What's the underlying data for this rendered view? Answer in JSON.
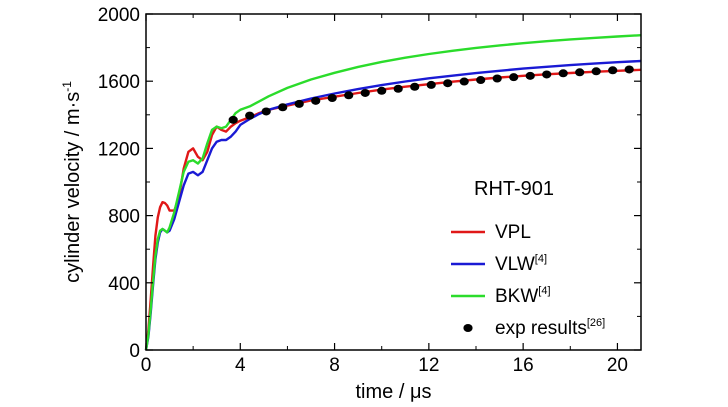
{
  "chart_data": {
    "type": "line",
    "title": "",
    "xlabel": "time / μs",
    "ylabel": "cylinder velocity / m·s",
    "ylabel_superscript": "-1",
    "xlim": [
      0,
      21
    ],
    "ylim": [
      0,
      2000
    ],
    "xticks": [
      0,
      4,
      8,
      12,
      16,
      20
    ],
    "yticks": [
      0,
      400,
      800,
      1200,
      1600,
      2000
    ],
    "legend_title": "RHT-901",
    "legend_position": "lower-right",
    "grid": false,
    "series": [
      {
        "name": "VPL",
        "ref": "",
        "color": "#e01818",
        "style": "line",
        "x": [
          0,
          0.1,
          0.2,
          0.3,
          0.4,
          0.5,
          0.6,
          0.7,
          0.8,
          0.9,
          1.0,
          1.2,
          1.4,
          1.6,
          1.8,
          2.0,
          2.2,
          2.4,
          2.6,
          2.8,
          3.0,
          3.2,
          3.4,
          3.6,
          3.8,
          4.0,
          4.4,
          4.8,
          5.2,
          6,
          7,
          8,
          9,
          10,
          11,
          12,
          13,
          14,
          15,
          16,
          17,
          18,
          19,
          20,
          21
        ],
        "y": [
          0,
          120,
          300,
          500,
          680,
          790,
          850,
          880,
          875,
          860,
          830,
          830,
          910,
          1080,
          1180,
          1200,
          1150,
          1130,
          1180,
          1280,
          1330,
          1310,
          1300,
          1330,
          1350,
          1365,
          1385,
          1410,
          1430,
          1455,
          1485,
          1508,
          1530,
          1550,
          1567,
          1582,
          1597,
          1610,
          1622,
          1632,
          1641,
          1649,
          1656,
          1662,
          1668
        ]
      },
      {
        "name": "VLW",
        "ref": "[4]",
        "color": "#1a1ad4",
        "style": "line",
        "x": [
          0,
          0.1,
          0.2,
          0.3,
          0.4,
          0.5,
          0.6,
          0.7,
          0.8,
          0.9,
          1.0,
          1.2,
          1.4,
          1.6,
          1.8,
          2.0,
          2.2,
          2.4,
          2.6,
          2.8,
          3.0,
          3.2,
          3.4,
          3.6,
          3.8,
          4.0,
          4.4,
          4.8,
          5.2,
          6,
          7,
          8,
          9,
          10,
          11,
          12,
          13,
          14,
          15,
          16,
          17,
          18,
          19,
          20,
          21
        ],
        "y": [
          0,
          80,
          220,
          390,
          540,
          640,
          700,
          720,
          710,
          700,
          710,
          780,
          880,
          980,
          1050,
          1060,
          1040,
          1060,
          1130,
          1200,
          1240,
          1250,
          1250,
          1270,
          1300,
          1340,
          1375,
          1405,
          1430,
          1462,
          1497,
          1527,
          1553,
          1577,
          1598,
          1617,
          1633,
          1648,
          1662,
          1675,
          1686,
          1696,
          1705,
          1713,
          1720
        ]
      },
      {
        "name": "BKW",
        "ref": "[4]",
        "color": "#2bdc2b",
        "style": "line",
        "x": [
          0,
          0.1,
          0.2,
          0.3,
          0.4,
          0.5,
          0.6,
          0.7,
          0.8,
          0.9,
          1.0,
          1.2,
          1.4,
          1.6,
          1.8,
          2.0,
          2.2,
          2.4,
          2.6,
          2.8,
          3.0,
          3.2,
          3.4,
          3.6,
          3.8,
          4.0,
          4.4,
          4.8,
          5.2,
          6,
          7,
          8,
          9,
          10,
          11,
          12,
          13,
          14,
          15,
          16,
          17,
          18,
          19,
          20,
          21
        ],
        "y": [
          0,
          90,
          240,
          410,
          560,
          660,
          710,
          720,
          710,
          700,
          730,
          820,
          940,
          1060,
          1120,
          1130,
          1110,
          1140,
          1230,
          1310,
          1330,
          1320,
          1330,
          1370,
          1410,
          1430,
          1450,
          1480,
          1510,
          1560,
          1610,
          1650,
          1685,
          1715,
          1740,
          1762,
          1781,
          1798,
          1813,
          1826,
          1838,
          1849,
          1858,
          1866,
          1874
        ]
      },
      {
        "name": "exp results",
        "ref": "[26]",
        "color": "#000000",
        "style": "points",
        "x": [
          3.7,
          4.4,
          5.1,
          5.8,
          6.5,
          7.2,
          7.9,
          8.6,
          9.3,
          10.0,
          10.7,
          11.4,
          12.1,
          12.8,
          13.5,
          14.2,
          14.9,
          15.6,
          16.3,
          17.0,
          17.7,
          18.4,
          19.1,
          19.8,
          20.5
        ],
        "y": [
          1370,
          1395,
          1420,
          1445,
          1465,
          1483,
          1500,
          1516,
          1530,
          1543,
          1555,
          1567,
          1578,
          1588,
          1598,
          1607,
          1616,
          1624,
          1632,
          1640,
          1647,
          1653,
          1659,
          1665,
          1670
        ]
      }
    ]
  }
}
